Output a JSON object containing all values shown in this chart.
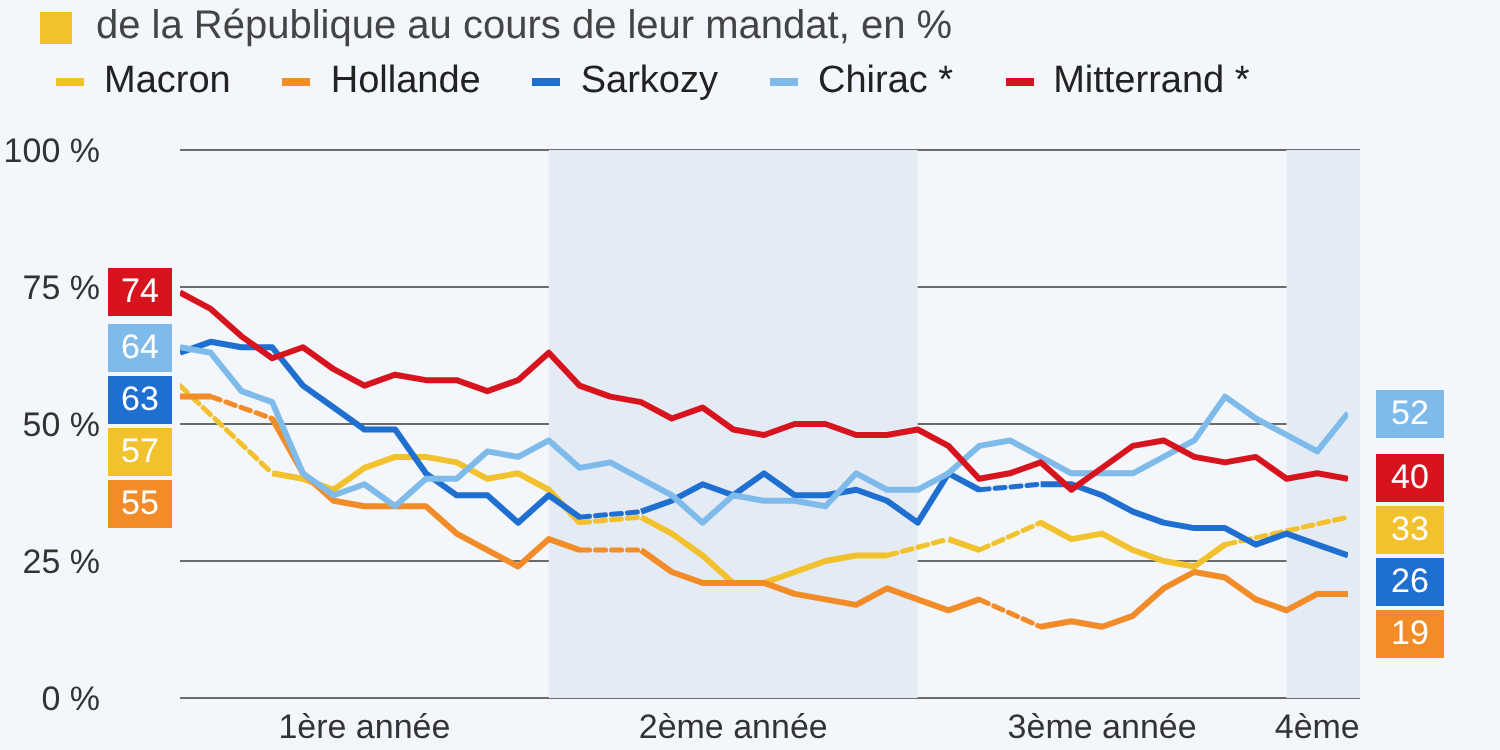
{
  "chart_data": {
    "type": "line",
    "title": "de la République au cours de leur mandat, en %",
    "categories": [
      null,
      null,
      null,
      null,
      null,
      null,
      "1ère année",
      null,
      null,
      null,
      null,
      null,
      null,
      null,
      null,
      null,
      null,
      null,
      "2ème année",
      null,
      null,
      null,
      null,
      null,
      null,
      null,
      null,
      null,
      null,
      null,
      "3ème année",
      null,
      null,
      null,
      null,
      null,
      null,
      "4ème",
      null
    ],
    "ylim": [
      0,
      100
    ],
    "yticks": [
      {
        "value": 0,
        "label": "0 %"
      },
      {
        "value": 25,
        "label": "25 %"
      },
      {
        "value": 50,
        "label": "50 %"
      },
      {
        "value": 75,
        "label": "75 %"
      },
      {
        "value": 100,
        "label": "100 %"
      }
    ],
    "grid": "y",
    "legend": "top",
    "marker": "none",
    "series": [
      {
        "name": "Macron",
        "color": "#f2c12e",
        "values": [
          57,
          null,
          null,
          41,
          40,
          38,
          42,
          44,
          44,
          43,
          40,
          41,
          38,
          32,
          null,
          33,
          30,
          26,
          21,
          21,
          23,
          25,
          26,
          26,
          null,
          29,
          27,
          null,
          32,
          29,
          30,
          27,
          25,
          24,
          28,
          null,
          null,
          null,
          33
        ],
        "value_labels": [
          "57",
          null,
          null,
          null,
          null,
          null,
          null,
          null,
          null,
          null,
          null,
          null,
          null,
          null,
          null,
          null,
          null,
          null,
          null,
          null,
          null,
          null,
          null,
          null,
          null,
          null,
          null,
          null,
          null,
          null,
          null,
          null,
          null,
          null,
          null,
          null,
          null,
          null,
          "33"
        ]
      },
      {
        "name": "Hollande",
        "color": "#f28c28",
        "values": [
          55,
          55,
          null,
          51,
          41,
          36,
          35,
          35,
          35,
          30,
          27,
          24,
          29,
          27,
          null,
          27,
          23,
          21,
          21,
          21,
          19,
          18,
          17,
          20,
          18,
          16,
          18,
          null,
          13,
          14,
          13,
          15,
          20,
          23,
          22,
          18,
          16,
          19,
          19
        ],
        "value_labels": [
          "55",
          null,
          null,
          null,
          null,
          null,
          null,
          null,
          null,
          null,
          null,
          null,
          null,
          null,
          null,
          null,
          null,
          null,
          null,
          null,
          null,
          null,
          null,
          null,
          null,
          null,
          null,
          null,
          null,
          null,
          null,
          null,
          null,
          null,
          null,
          null,
          null,
          null,
          "19"
        ]
      },
      {
        "name": "Sarkozy",
        "color": "#1f6fd1",
        "values": [
          63,
          65,
          64,
          64,
          57,
          53,
          49,
          49,
          41,
          37,
          37,
          32,
          37,
          33,
          null,
          34,
          36,
          39,
          37,
          41,
          37,
          37,
          38,
          36,
          32,
          41,
          38,
          null,
          39,
          39,
          37,
          34,
          32,
          31,
          31,
          28,
          30,
          28,
          26
        ],
        "value_labels": [
          "63",
          null,
          null,
          null,
          null,
          null,
          null,
          null,
          null,
          null,
          null,
          null,
          null,
          null,
          null,
          null,
          null,
          null,
          null,
          null,
          null,
          null,
          null,
          null,
          null,
          null,
          null,
          null,
          null,
          null,
          null,
          null,
          null,
          null,
          null,
          null,
          null,
          null,
          "26"
        ]
      },
      {
        "name": "Chirac *",
        "color": "#7fbbea",
        "values": [
          64,
          63,
          56,
          54,
          41,
          37,
          39,
          35,
          40,
          40,
          45,
          44,
          47,
          42,
          43,
          40,
          37,
          32,
          37,
          36,
          36,
          35,
          41,
          38,
          38,
          41,
          46,
          47,
          44,
          41,
          41,
          41,
          44,
          47,
          55,
          51,
          48,
          45,
          52
        ],
        "value_labels": [
          "64",
          null,
          null,
          null,
          null,
          null,
          null,
          null,
          null,
          null,
          null,
          null,
          null,
          null,
          null,
          null,
          null,
          null,
          null,
          null,
          null,
          null,
          null,
          null,
          null,
          null,
          null,
          null,
          null,
          null,
          null,
          null,
          null,
          null,
          null,
          null,
          null,
          null,
          "52"
        ]
      },
      {
        "name": "Mitterrand *",
        "color": "#d7141e",
        "values": [
          74,
          71,
          66,
          62,
          64,
          60,
          57,
          59,
          58,
          58,
          56,
          58,
          63,
          57,
          55,
          54,
          51,
          53,
          49,
          48,
          50,
          50,
          48,
          48,
          49,
          46,
          40,
          41,
          43,
          38,
          42,
          46,
          47,
          44,
          43,
          44,
          40,
          41,
          40
        ],
        "value_labels": [
          "74",
          null,
          null,
          null,
          null,
          null,
          null,
          null,
          null,
          null,
          null,
          null,
          null,
          null,
          null,
          null,
          null,
          null,
          null,
          null,
          null,
          null,
          null,
          null,
          null,
          null,
          null,
          null,
          null,
          null,
          null,
          null,
          null,
          null,
          null,
          null,
          null,
          null,
          "40"
        ]
      }
    ]
  }
}
